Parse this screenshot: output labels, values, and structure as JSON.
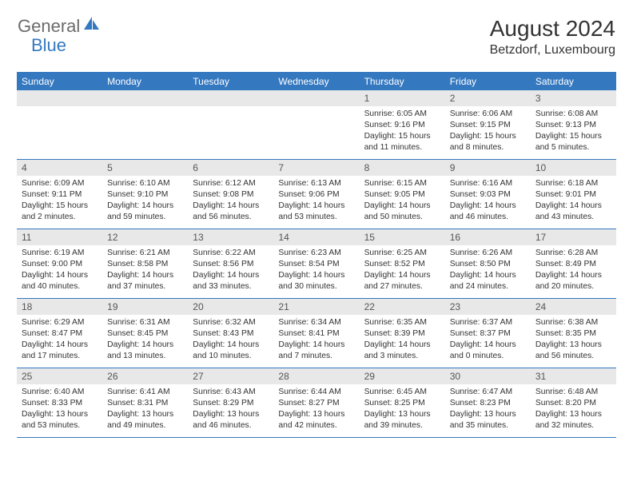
{
  "logo": {
    "general": "General",
    "blue": "Blue"
  },
  "title": "August 2024",
  "location": "Betzdorf, Luxembourg",
  "colors": {
    "accent": "#3478c0",
    "header_bg": "#3478c0",
    "header_text": "#ffffff",
    "daynum_bg": "#e8e8e8",
    "border": "#3478c0",
    "text": "#333333",
    "logo_gray": "#6b6b6b"
  },
  "weekdays": [
    "Sunday",
    "Monday",
    "Tuesday",
    "Wednesday",
    "Thursday",
    "Friday",
    "Saturday"
  ],
  "weeks": [
    [
      {
        "n": "",
        "sr": "",
        "ss": "",
        "d1": "",
        "d2": ""
      },
      {
        "n": "",
        "sr": "",
        "ss": "",
        "d1": "",
        "d2": ""
      },
      {
        "n": "",
        "sr": "",
        "ss": "",
        "d1": "",
        "d2": ""
      },
      {
        "n": "",
        "sr": "",
        "ss": "",
        "d1": "",
        "d2": ""
      },
      {
        "n": "1",
        "sr": "Sunrise: 6:05 AM",
        "ss": "Sunset: 9:16 PM",
        "d1": "Daylight: 15 hours",
        "d2": "and 11 minutes."
      },
      {
        "n": "2",
        "sr": "Sunrise: 6:06 AM",
        "ss": "Sunset: 9:15 PM",
        "d1": "Daylight: 15 hours",
        "d2": "and 8 minutes."
      },
      {
        "n": "3",
        "sr": "Sunrise: 6:08 AM",
        "ss": "Sunset: 9:13 PM",
        "d1": "Daylight: 15 hours",
        "d2": "and 5 minutes."
      }
    ],
    [
      {
        "n": "4",
        "sr": "Sunrise: 6:09 AM",
        "ss": "Sunset: 9:11 PM",
        "d1": "Daylight: 15 hours",
        "d2": "and 2 minutes."
      },
      {
        "n": "5",
        "sr": "Sunrise: 6:10 AM",
        "ss": "Sunset: 9:10 PM",
        "d1": "Daylight: 14 hours",
        "d2": "and 59 minutes."
      },
      {
        "n": "6",
        "sr": "Sunrise: 6:12 AM",
        "ss": "Sunset: 9:08 PM",
        "d1": "Daylight: 14 hours",
        "d2": "and 56 minutes."
      },
      {
        "n": "7",
        "sr": "Sunrise: 6:13 AM",
        "ss": "Sunset: 9:06 PM",
        "d1": "Daylight: 14 hours",
        "d2": "and 53 minutes."
      },
      {
        "n": "8",
        "sr": "Sunrise: 6:15 AM",
        "ss": "Sunset: 9:05 PM",
        "d1": "Daylight: 14 hours",
        "d2": "and 50 minutes."
      },
      {
        "n": "9",
        "sr": "Sunrise: 6:16 AM",
        "ss": "Sunset: 9:03 PM",
        "d1": "Daylight: 14 hours",
        "d2": "and 46 minutes."
      },
      {
        "n": "10",
        "sr": "Sunrise: 6:18 AM",
        "ss": "Sunset: 9:01 PM",
        "d1": "Daylight: 14 hours",
        "d2": "and 43 minutes."
      }
    ],
    [
      {
        "n": "11",
        "sr": "Sunrise: 6:19 AM",
        "ss": "Sunset: 9:00 PM",
        "d1": "Daylight: 14 hours",
        "d2": "and 40 minutes."
      },
      {
        "n": "12",
        "sr": "Sunrise: 6:21 AM",
        "ss": "Sunset: 8:58 PM",
        "d1": "Daylight: 14 hours",
        "d2": "and 37 minutes."
      },
      {
        "n": "13",
        "sr": "Sunrise: 6:22 AM",
        "ss": "Sunset: 8:56 PM",
        "d1": "Daylight: 14 hours",
        "d2": "and 33 minutes."
      },
      {
        "n": "14",
        "sr": "Sunrise: 6:23 AM",
        "ss": "Sunset: 8:54 PM",
        "d1": "Daylight: 14 hours",
        "d2": "and 30 minutes."
      },
      {
        "n": "15",
        "sr": "Sunrise: 6:25 AM",
        "ss": "Sunset: 8:52 PM",
        "d1": "Daylight: 14 hours",
        "d2": "and 27 minutes."
      },
      {
        "n": "16",
        "sr": "Sunrise: 6:26 AM",
        "ss": "Sunset: 8:50 PM",
        "d1": "Daylight: 14 hours",
        "d2": "and 24 minutes."
      },
      {
        "n": "17",
        "sr": "Sunrise: 6:28 AM",
        "ss": "Sunset: 8:49 PM",
        "d1": "Daylight: 14 hours",
        "d2": "and 20 minutes."
      }
    ],
    [
      {
        "n": "18",
        "sr": "Sunrise: 6:29 AM",
        "ss": "Sunset: 8:47 PM",
        "d1": "Daylight: 14 hours",
        "d2": "and 17 minutes."
      },
      {
        "n": "19",
        "sr": "Sunrise: 6:31 AM",
        "ss": "Sunset: 8:45 PM",
        "d1": "Daylight: 14 hours",
        "d2": "and 13 minutes."
      },
      {
        "n": "20",
        "sr": "Sunrise: 6:32 AM",
        "ss": "Sunset: 8:43 PM",
        "d1": "Daylight: 14 hours",
        "d2": "and 10 minutes."
      },
      {
        "n": "21",
        "sr": "Sunrise: 6:34 AM",
        "ss": "Sunset: 8:41 PM",
        "d1": "Daylight: 14 hours",
        "d2": "and 7 minutes."
      },
      {
        "n": "22",
        "sr": "Sunrise: 6:35 AM",
        "ss": "Sunset: 8:39 PM",
        "d1": "Daylight: 14 hours",
        "d2": "and 3 minutes."
      },
      {
        "n": "23",
        "sr": "Sunrise: 6:37 AM",
        "ss": "Sunset: 8:37 PM",
        "d1": "Daylight: 14 hours",
        "d2": "and 0 minutes."
      },
      {
        "n": "24",
        "sr": "Sunrise: 6:38 AM",
        "ss": "Sunset: 8:35 PM",
        "d1": "Daylight: 13 hours",
        "d2": "and 56 minutes."
      }
    ],
    [
      {
        "n": "25",
        "sr": "Sunrise: 6:40 AM",
        "ss": "Sunset: 8:33 PM",
        "d1": "Daylight: 13 hours",
        "d2": "and 53 minutes."
      },
      {
        "n": "26",
        "sr": "Sunrise: 6:41 AM",
        "ss": "Sunset: 8:31 PM",
        "d1": "Daylight: 13 hours",
        "d2": "and 49 minutes."
      },
      {
        "n": "27",
        "sr": "Sunrise: 6:43 AM",
        "ss": "Sunset: 8:29 PM",
        "d1": "Daylight: 13 hours",
        "d2": "and 46 minutes."
      },
      {
        "n": "28",
        "sr": "Sunrise: 6:44 AM",
        "ss": "Sunset: 8:27 PM",
        "d1": "Daylight: 13 hours",
        "d2": "and 42 minutes."
      },
      {
        "n": "29",
        "sr": "Sunrise: 6:45 AM",
        "ss": "Sunset: 8:25 PM",
        "d1": "Daylight: 13 hours",
        "d2": "and 39 minutes."
      },
      {
        "n": "30",
        "sr": "Sunrise: 6:47 AM",
        "ss": "Sunset: 8:23 PM",
        "d1": "Daylight: 13 hours",
        "d2": "and 35 minutes."
      },
      {
        "n": "31",
        "sr": "Sunrise: 6:48 AM",
        "ss": "Sunset: 8:20 PM",
        "d1": "Daylight: 13 hours",
        "d2": "and 32 minutes."
      }
    ]
  ]
}
